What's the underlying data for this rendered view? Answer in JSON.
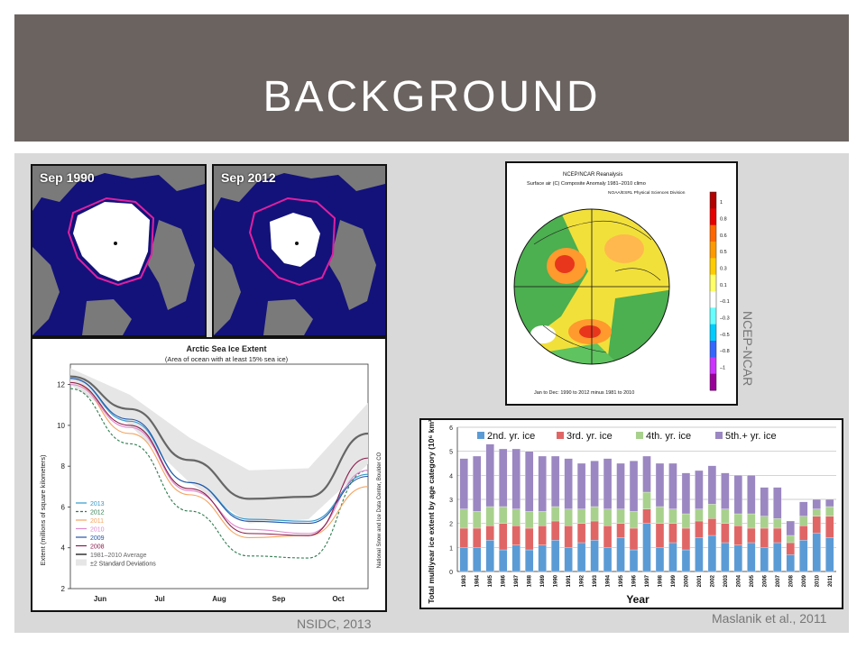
{
  "slide": {
    "title": "BACKGROUND"
  },
  "maps": {
    "left_label": "Sep 1990",
    "right_label": "Sep 2012"
  },
  "credits": {
    "nsidc": "NSIDC, 2013",
    "ncep": "NCEP-NCAR",
    "maslanik": "Maslanik et al., 2011"
  },
  "colors": {
    "title_bar": "#6b6360",
    "content_bg": "#d9d9d9",
    "ocean": "#13127a",
    "land": "#7a7a7a",
    "ice": "#ffffff"
  },
  "chart_data": [
    {
      "type": "line",
      "title": "Arctic Sea Ice Extent",
      "subtitle": "(Area of ocean with at least 15% sea ice)",
      "ylabel": "Extent (millions of square kilometers)",
      "side_note": "National Snow and Ice Data Center, Boulder CO",
      "categories": [
        "Jun",
        "Jul",
        "Aug",
        "Sep",
        "Oct"
      ],
      "x": [
        0,
        1,
        2,
        3,
        4,
        5
      ],
      "y_ticks": [
        2,
        4,
        6,
        8,
        10,
        12
      ],
      "ylim": [
        2,
        13
      ],
      "series": [
        {
          "name": "2013",
          "color": "#3399cc",
          "dash": false,
          "values": [
            12.3,
            10.2,
            7.2,
            5.4,
            5.3,
            7.6
          ]
        },
        {
          "name": "2012",
          "color": "#2e7d4f",
          "dash": true,
          "values": [
            11.8,
            9.1,
            5.8,
            3.6,
            3.5,
            7.8
          ]
        },
        {
          "name": "2011",
          "color": "#f4a460",
          "dash": false,
          "values": [
            12.1,
            9.6,
            6.6,
            4.5,
            4.6,
            7.0
          ]
        },
        {
          "name": "2010",
          "color": "#dd88cc",
          "dash": false,
          "values": [
            12.0,
            9.9,
            6.8,
            4.9,
            4.7,
            7.8
          ]
        },
        {
          "name": "2009",
          "color": "#2255aa",
          "dash": false,
          "values": [
            12.3,
            10.3,
            7.2,
            5.3,
            5.2,
            7.5
          ]
        },
        {
          "name": "2008",
          "color": "#8b1a4a",
          "dash": false,
          "values": [
            12.1,
            10.0,
            6.9,
            4.7,
            4.6,
            8.4
          ]
        },
        {
          "name": "1981–2010 Average",
          "color": "#666666",
          "dash": false,
          "values": [
            12.4,
            10.8,
            8.3,
            6.4,
            6.5,
            9.6
          ]
        }
      ],
      "band": {
        "name": "±2 Standard Deviations",
        "lower": [
          12.0,
          10.0,
          7.2,
          5.2,
          5.4,
          8.1
        ],
        "upper": [
          12.8,
          11.5,
          9.4,
          7.8,
          7.9,
          11.1
        ]
      }
    },
    {
      "type": "bar",
      "ylabel": "Total multiyear ice extent by age category (10⁶ km²)",
      "xlabel": "Year",
      "ylim": [
        0,
        6
      ],
      "y_ticks": [
        0,
        1,
        2,
        3,
        4,
        5,
        6
      ],
      "categories": [
        "1983",
        "1984",
        "1985",
        "1986",
        "1987",
        "1988",
        "1989",
        "1990",
        "1991",
        "1992",
        "1993",
        "1994",
        "1995",
        "1996",
        "1997",
        "1998",
        "1999",
        "2000",
        "2001",
        "2002",
        "2003",
        "2004",
        "2005",
        "2006",
        "2007",
        "2008",
        "2009",
        "2010",
        "2011"
      ],
      "series": [
        {
          "name": "2nd. yr. ice",
          "color": "#5b9bd5",
          "values": [
            1.0,
            1.0,
            1.3,
            0.9,
            1.1,
            0.9,
            1.1,
            1.3,
            1.0,
            1.2,
            1.3,
            1.0,
            1.4,
            0.9,
            2.0,
            1.0,
            1.2,
            0.9,
            1.4,
            1.5,
            1.2,
            1.1,
            1.2,
            1.0,
            1.2,
            0.7,
            1.3,
            1.6,
            1.4
          ]
        },
        {
          "name": "3rd. yr. ice",
          "color": "#e06666",
          "values": [
            0.8,
            0.8,
            0.6,
            1.1,
            0.8,
            0.9,
            0.8,
            0.8,
            0.9,
            0.8,
            0.8,
            0.9,
            0.6,
            0.9,
            0.6,
            1.0,
            0.8,
            0.9,
            0.7,
            0.7,
            0.8,
            0.8,
            0.6,
            0.8,
            0.6,
            0.5,
            0.6,
            0.7,
            0.9
          ]
        },
        {
          "name": "4th. yr. ice",
          "color": "#a9d18e",
          "values": [
            0.8,
            0.7,
            0.8,
            0.7,
            0.7,
            0.7,
            0.6,
            0.6,
            0.7,
            0.6,
            0.6,
            0.7,
            0.6,
            0.7,
            0.7,
            0.7,
            0.6,
            0.6,
            0.5,
            0.6,
            0.6,
            0.5,
            0.6,
            0.5,
            0.4,
            0.3,
            0.4,
            0.3,
            0.4
          ]
        },
        {
          "name": "5th.+ yr. ice",
          "color": "#9b87c2",
          "values": [
            2.1,
            2.3,
            2.6,
            2.4,
            2.5,
            2.5,
            2.3,
            2.1,
            2.1,
            1.9,
            1.9,
            2.1,
            1.9,
            2.1,
            1.5,
            1.8,
            1.9,
            1.7,
            1.6,
            1.6,
            1.5,
            1.6,
            1.6,
            1.2,
            1.3,
            0.6,
            0.6,
            0.4,
            0.3
          ]
        }
      ]
    },
    {
      "type": "heatmap",
      "title": "NCEP/NCAR Reanalysis",
      "subtitle": "Surface air (C) Composite Anomaly 1981–2010 climo",
      "source_line": "NOAA/ESRL Physical Sciences Division",
      "footer": "Jan to Dec: 1990 to 2012 minus 1981 to 2010",
      "colorbar_labels": [
        "1",
        "0.8",
        "0.6",
        "0.5",
        "0.3",
        "0.1",
        "–0.1",
        "–0.3",
        "–0.5",
        "–0.8",
        "–1"
      ],
      "colorbar_colors": [
        "#b30000",
        "#e60000",
        "#ff6600",
        "#ff9900",
        "#ffcc00",
        "#ffff66",
        "#ffffff",
        "#66ffff",
        "#00ccff",
        "#3366ff",
        "#cc33ff",
        "#990099"
      ]
    }
  ]
}
